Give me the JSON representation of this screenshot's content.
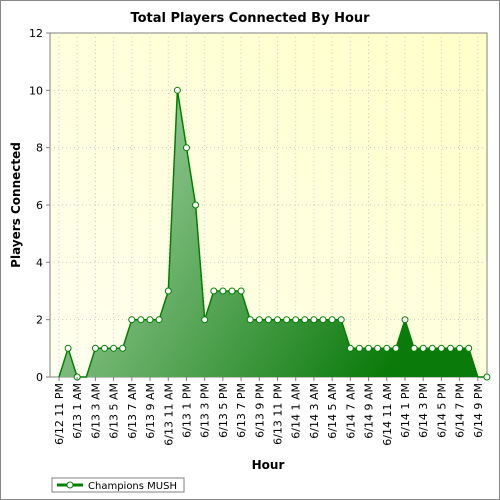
{
  "chart_data": {
    "type": "area",
    "title": "Total Players Connected By Hour",
    "xlabel": "Hour",
    "ylabel": "Players Connected",
    "ylim": [
      0,
      12
    ],
    "yticks": [
      0,
      2,
      4,
      6,
      8,
      10,
      12
    ],
    "grid": true,
    "legend_position": "bottom-left",
    "colors": {
      "series_line": "#008000",
      "fill_light": "#b8dcb8",
      "fill_dark": "#0a7a0a",
      "plot_bg_light": "#fffff0",
      "plot_bg_dark": "#ffffc8",
      "marker_fill": "#ffffff"
    },
    "x_labels": [
      "6/12 11 PM",
      "6/13 1 AM",
      "6/13 3 AM",
      "6/13 5 AM",
      "6/13 7 AM",
      "6/13 9 AM",
      "6/13 11 AM",
      "6/13 1 PM",
      "6/13 3 PM",
      "6/13 5 PM",
      "6/13 7 PM",
      "6/13 9 PM",
      "6/13 11 PM",
      "6/14 1 AM",
      "6/14 3 AM",
      "6/14 5 AM",
      "6/14 7 AM",
      "6/14 9 AM",
      "6/14 11 AM",
      "6/14 1 PM",
      "6/14 3 PM",
      "6/14 5 PM",
      "6/14 7 PM",
      "6/14 9 PM"
    ],
    "series": [
      {
        "name": "Champions MUSH",
        "values": [
          0,
          1,
          0,
          0,
          1,
          1,
          1,
          1,
          2,
          2,
          2,
          2,
          3,
          10,
          8,
          6,
          2,
          3,
          3,
          3,
          3,
          2,
          2,
          2,
          2,
          2,
          2,
          2,
          2,
          2,
          2,
          2,
          1,
          1,
          1,
          1,
          1,
          1,
          2,
          1,
          1,
          1,
          1,
          1,
          1,
          1,
          0,
          0
        ],
        "markers": [
          false,
          true,
          true,
          false,
          true,
          true,
          true,
          true,
          true,
          true,
          true,
          true,
          true,
          true,
          true,
          true,
          true,
          true,
          true,
          true,
          true,
          true,
          true,
          true,
          true,
          true,
          true,
          true,
          true,
          true,
          true,
          true,
          true,
          true,
          true,
          true,
          true,
          true,
          true,
          true,
          true,
          true,
          true,
          true,
          true,
          true,
          false,
          true
        ]
      }
    ]
  }
}
